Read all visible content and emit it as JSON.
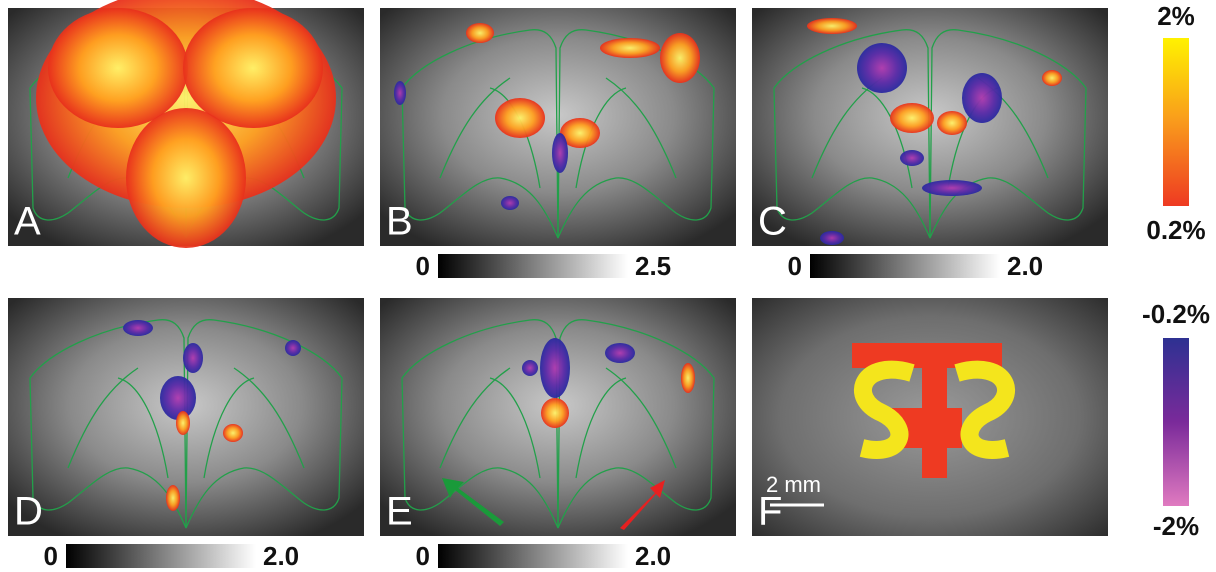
{
  "panels": [
    {
      "label": "A"
    },
    {
      "label": "B",
      "scale": {
        "min": "0",
        "max": "2.5"
      }
    },
    {
      "label": "C",
      "scale": {
        "min": "0",
        "max": "2.0"
      }
    },
    {
      "label": "D",
      "scale": {
        "min": "0",
        "max": "2.0"
      }
    },
    {
      "label": "E",
      "scale": {
        "min": "0",
        "max": "2.0"
      }
    },
    {
      "label": "F",
      "scale_bar": "2 mm"
    }
  ],
  "positive_scale": {
    "max": "2%",
    "min": "0.2%"
  },
  "negative_scale": {
    "max": "-0.2%",
    "min": "-2%"
  }
}
